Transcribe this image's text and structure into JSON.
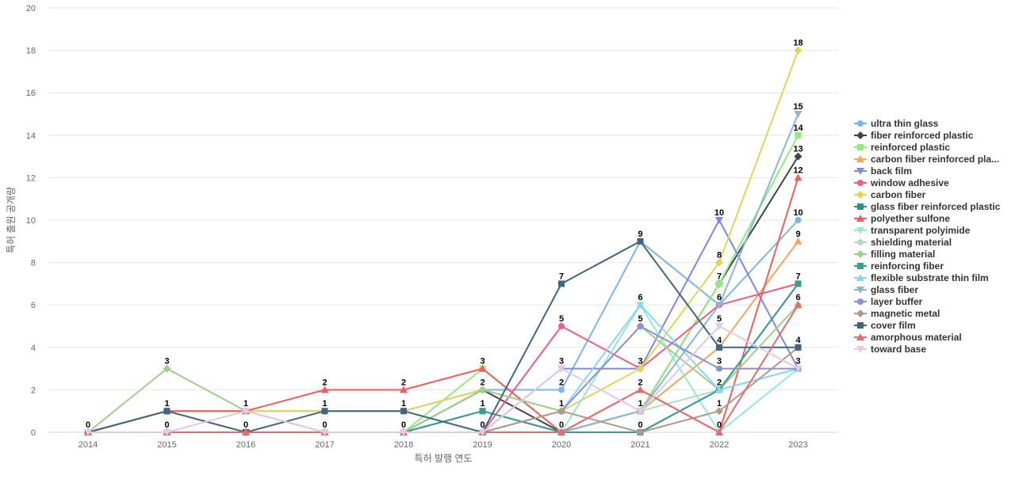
{
  "chart_data": {
    "type": "line",
    "title": "",
    "xlabel": "특허 발행 연도",
    "ylabel": "특허 출원 공개량",
    "x": [
      "2014",
      "2015",
      "2016",
      "2017",
      "2018",
      "2019",
      "2020",
      "2021",
      "2022",
      "2023"
    ],
    "ylim": [
      0,
      20
    ],
    "yticks": [
      0,
      2,
      4,
      6,
      8,
      10,
      12,
      14,
      16,
      18,
      20
    ],
    "grid": true,
    "legend_position": "right",
    "series": [
      {
        "name": "ultra thin glass",
        "color": "#7cb5ec",
        "marker": "circle",
        "values": [
          0,
          1,
          1,
          1,
          1,
          2,
          2,
          9,
          6,
          10
        ]
      },
      {
        "name": "fiber reinforced plastic",
        "color": "#434348",
        "marker": "diamond",
        "values": [
          0,
          0,
          0,
          0,
          0,
          2,
          0,
          1,
          7,
          13
        ]
      },
      {
        "name": "reinforced plastic",
        "color": "#90ed7d",
        "marker": "square",
        "values": [
          0,
          0,
          0,
          0,
          0,
          3,
          0,
          1,
          7,
          14
        ]
      },
      {
        "name": "carbon fiber reinforced pla...",
        "color": "#f7a35c",
        "marker": "triangle",
        "values": [
          0,
          0,
          0,
          0,
          0,
          0,
          0,
          1,
          4,
          9
        ]
      },
      {
        "name": "back film",
        "color": "#8085e9",
        "marker": "triangle-down",
        "values": [
          0,
          0,
          0,
          0,
          0,
          0,
          3,
          3,
          10,
          3
        ]
      },
      {
        "name": "window adhesive",
        "color": "#f15c80",
        "marker": "circle",
        "values": [
          0,
          0,
          0,
          0,
          0,
          0,
          5,
          3,
          6,
          7
        ]
      },
      {
        "name": "carbon fiber",
        "color": "#e4d354",
        "marker": "diamond",
        "values": [
          0,
          1,
          1,
          1,
          1,
          2,
          1,
          3,
          8,
          18
        ]
      },
      {
        "name": "glass fiber reinforced plastic",
        "color": "#2b908f",
        "marker": "square",
        "values": [
          0,
          0,
          0,
          0,
          0,
          1,
          0,
          0,
          2,
          7
        ]
      },
      {
        "name": "polyether sulfone",
        "color": "#f45b5b",
        "marker": "triangle",
        "values": [
          0,
          1,
          1,
          2,
          2,
          3,
          0,
          2,
          0,
          12
        ]
      },
      {
        "name": "transparent polyimide",
        "color": "#91e8e1",
        "marker": "triangle-down",
        "values": [
          0,
          0,
          0,
          0,
          0,
          0,
          0,
          6,
          0,
          3
        ]
      },
      {
        "name": "shielding material",
        "color": "#b0dcc0",
        "marker": "circle",
        "values": [
          0,
          0,
          0,
          0,
          0,
          0,
          0,
          1,
          2,
          3
        ]
      },
      {
        "name": "filling material",
        "color": "#a0cf8a",
        "marker": "diamond",
        "values": [
          0,
          3,
          1,
          0,
          0,
          2,
          1,
          5,
          2,
          6
        ]
      },
      {
        "name": "reinforcing fiber",
        "color": "#3a9e8e",
        "marker": "square",
        "values": [
          0,
          0,
          0,
          0,
          0,
          1,
          0,
          0,
          2,
          7
        ]
      },
      {
        "name": "flexible substrate thin film",
        "color": "#86d7ef",
        "marker": "triangle",
        "values": [
          0,
          0,
          0,
          0,
          0,
          0,
          1,
          6,
          2,
          3
        ]
      },
      {
        "name": "glass fiber",
        "color": "#8cb4dc",
        "marker": "triangle-down",
        "values": [
          0,
          0,
          0,
          0,
          0,
          0,
          0,
          1,
          6,
          15
        ]
      },
      {
        "name": "layer buffer",
        "color": "#8a8fd8",
        "marker": "circle",
        "values": [
          0,
          0,
          0,
          0,
          0,
          0,
          1,
          5,
          3,
          3
        ]
      },
      {
        "name": "magnetic metal",
        "color": "#b29a86",
        "marker": "diamond",
        "values": [
          0,
          0,
          0,
          0,
          0,
          0,
          1,
          0,
          1,
          4
        ]
      },
      {
        "name": "cover film",
        "color": "#3d6680",
        "marker": "square",
        "values": [
          0,
          1,
          0,
          1,
          1,
          0,
          7,
          9,
          4,
          4
        ]
      },
      {
        "name": "amorphous material",
        "color": "#e86a6a",
        "marker": "triangle",
        "values": [
          0,
          0,
          0,
          0,
          0,
          0,
          0,
          2,
          0,
          6
        ]
      },
      {
        "name": "toward base",
        "color": "#e0c8e6",
        "marker": "triangle-down",
        "values": [
          0,
          0,
          1,
          0,
          0,
          0,
          3,
          1,
          5,
          3
        ]
      }
    ],
    "data_labels": [
      {
        "x": "2014",
        "text": "0",
        "y": 0
      },
      {
        "x": "2015",
        "text": "3",
        "y": 3
      },
      {
        "x": "2015",
        "text": "1",
        "y": 1
      },
      {
        "x": "2015",
        "text": "0",
        "y": 0
      },
      {
        "x": "2016",
        "text": "1",
        "y": 1
      },
      {
        "x": "2016",
        "text": "0",
        "y": 0
      },
      {
        "x": "2017",
        "text": "2",
        "y": 2
      },
      {
        "x": "2017",
        "text": "1",
        "y": 1
      },
      {
        "x": "2017",
        "text": "0",
        "y": 0
      },
      {
        "x": "2018",
        "text": "2",
        "y": 2
      },
      {
        "x": "2018",
        "text": "1",
        "y": 1
      },
      {
        "x": "2018",
        "text": "0",
        "y": 0
      },
      {
        "x": "2019",
        "text": "3",
        "y": 3
      },
      {
        "x": "2019",
        "text": "2",
        "y": 2
      },
      {
        "x": "2019",
        "text": "1",
        "y": 1
      },
      {
        "x": "2019",
        "text": "0",
        "y": 0
      },
      {
        "x": "2020",
        "text": "7",
        "y": 7
      },
      {
        "x": "2020",
        "text": "5",
        "y": 5
      },
      {
        "x": "2020",
        "text": "3",
        "y": 3
      },
      {
        "x": "2020",
        "text": "2",
        "y": 2
      },
      {
        "x": "2020",
        "text": "1",
        "y": 1
      },
      {
        "x": "2020",
        "text": "0",
        "y": 0
      },
      {
        "x": "2021",
        "text": "9",
        "y": 9
      },
      {
        "x": "2021",
        "text": "6",
        "y": 6
      },
      {
        "x": "2021",
        "text": "5",
        "y": 5
      },
      {
        "x": "2021",
        "text": "3",
        "y": 3
      },
      {
        "x": "2021",
        "text": "2",
        "y": 2
      },
      {
        "x": "2021",
        "text": "1",
        "y": 1
      },
      {
        "x": "2021",
        "text": "0",
        "y": 0
      },
      {
        "x": "2022",
        "text": "10",
        "y": 10
      },
      {
        "x": "2022",
        "text": "8",
        "y": 8
      },
      {
        "x": "2022",
        "text": "7",
        "y": 7
      },
      {
        "x": "2022",
        "text": "6",
        "y": 6
      },
      {
        "x": "2022",
        "text": "5",
        "y": 5
      },
      {
        "x": "2022",
        "text": "4",
        "y": 4
      },
      {
        "x": "2022",
        "text": "3",
        "y": 3
      },
      {
        "x": "2022",
        "text": "2",
        "y": 2
      },
      {
        "x": "2022",
        "text": "1",
        "y": 1
      },
      {
        "x": "2022",
        "text": "0",
        "y": 0
      },
      {
        "x": "2023",
        "text": "18",
        "y": 18
      },
      {
        "x": "2023",
        "text": "15",
        "y": 15
      },
      {
        "x": "2023",
        "text": "14",
        "y": 14
      },
      {
        "x": "2023",
        "text": "13",
        "y": 13
      },
      {
        "x": "2023",
        "text": "12",
        "y": 12
      },
      {
        "x": "2023",
        "text": "10",
        "y": 10
      },
      {
        "x": "2023",
        "text": "9",
        "y": 9
      },
      {
        "x": "2023",
        "text": "7",
        "y": 7
      },
      {
        "x": "2023",
        "text": "6",
        "y": 6
      },
      {
        "x": "2023",
        "text": "4",
        "y": 4
      },
      {
        "x": "2023",
        "text": "3",
        "y": 3
      }
    ]
  }
}
